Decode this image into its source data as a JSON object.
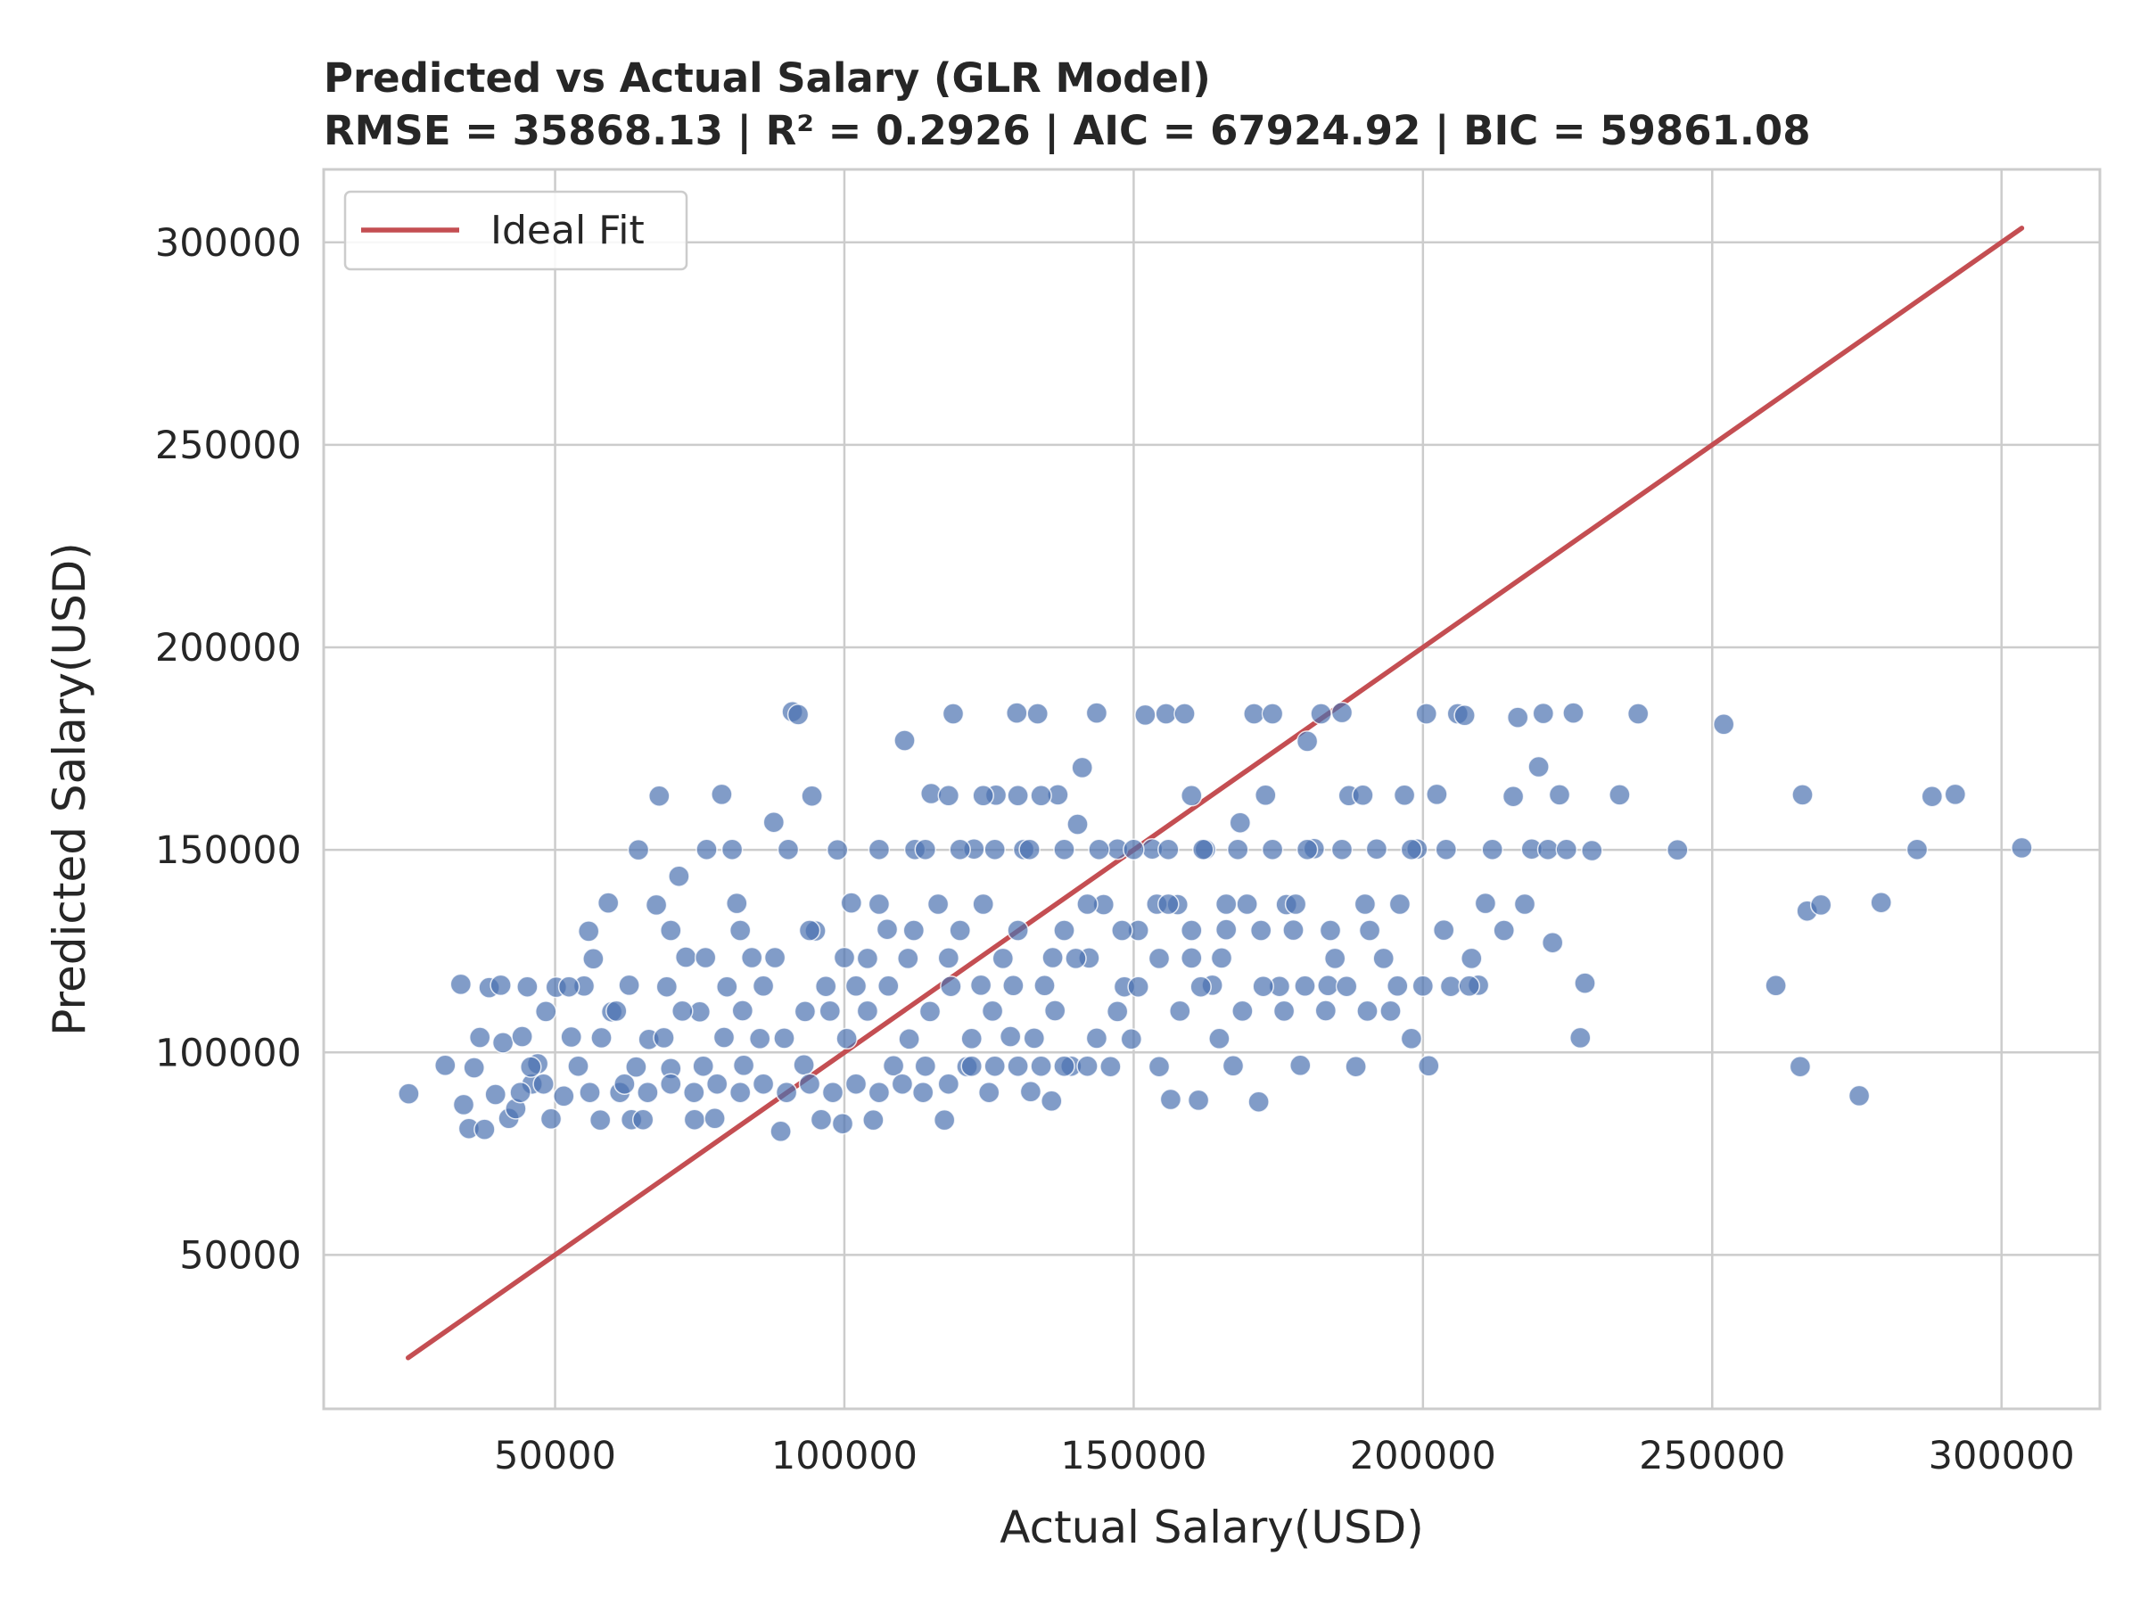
{
  "chart_data": {
    "type": "scatter",
    "title": "Predicted vs Actual Salary (GLR Model)",
    "subtitle": "RMSE = 35868.13 | R² = 0.2926 | AIC = 67924.92 | BIC = 59861.08",
    "xlabel": "Actual Salary(USD)",
    "ylabel": "Predicted Salary(USD)",
    "xlim": [
      10000,
      317000
    ],
    "ylim": [
      12000,
      318000
    ],
    "xticks": [
      50000,
      100000,
      150000,
      200000,
      250000,
      300000
    ],
    "yticks": [
      50000,
      100000,
      150000,
      200000,
      250000,
      300000
    ],
    "grid": true,
    "legend": {
      "position": "top-left",
      "entries": [
        {
          "label": "Ideal Fit",
          "color": "#c44e52"
        }
      ]
    },
    "colors": {
      "points": "#4c72b0",
      "ideal_line": "#c44e52"
    },
    "ideal_fit": {
      "name": "Ideal Fit",
      "x": [
        24600,
        303500
      ],
      "y": [
        24600,
        303500
      ]
    },
    "series": [
      {
        "points": [
          [
            24700,
            89800
          ],
          [
            31000,
            96800
          ],
          [
            33700,
            116800
          ],
          [
            34200,
            87100
          ],
          [
            35100,
            81200
          ],
          [
            36000,
            96200
          ],
          [
            37000,
            103700
          ],
          [
            37800,
            81000
          ],
          [
            38600,
            116000
          ],
          [
            39700,
            89600
          ],
          [
            41000,
            102400
          ],
          [
            42000,
            83700
          ],
          [
            43200,
            86100
          ],
          [
            44300,
            103900
          ],
          [
            45200,
            116200
          ],
          [
            46000,
            92200
          ],
          [
            47000,
            97200
          ],
          [
            48400,
            110100
          ],
          [
            49300,
            83600
          ],
          [
            50200,
            116100
          ],
          [
            51500,
            89200
          ],
          [
            52800,
            103800
          ],
          [
            54000,
            96600
          ],
          [
            55000,
            116400
          ],
          [
            55800,
            129900
          ],
          [
            56600,
            123100
          ],
          [
            57800,
            83300
          ],
          [
            59200,
            136900
          ],
          [
            59800,
            110000
          ],
          [
            61200,
            90100
          ],
          [
            62800,
            116600
          ],
          [
            63200,
            83400
          ],
          [
            64400,
            150000
          ],
          [
            65200,
            83400
          ],
          [
            66200,
            103200
          ],
          [
            67500,
            136400
          ],
          [
            68000,
            163300
          ],
          [
            69300,
            116200
          ],
          [
            70000,
            96000
          ],
          [
            71400,
            143500
          ],
          [
            72600,
            123500
          ],
          [
            74100,
            83400
          ],
          [
            75000,
            110000
          ],
          [
            76200,
            150100
          ],
          [
            77600,
            83700
          ],
          [
            78800,
            163700
          ],
          [
            79700,
            116200
          ],
          [
            80600,
            150100
          ],
          [
            81400,
            136800
          ],
          [
            82600,
            96800
          ],
          [
            84000,
            123400
          ],
          [
            85400,
            103400
          ],
          [
            87800,
            156800
          ],
          [
            89000,
            80500
          ],
          [
            90300,
            150100
          ],
          [
            91000,
            184100
          ],
          [
            92000,
            183400
          ],
          [
            93000,
            96900
          ],
          [
            94400,
            163300
          ],
          [
            95000,
            130000
          ],
          [
            96000,
            83400
          ],
          [
            97500,
            110200
          ],
          [
            98800,
            150000
          ],
          [
            99700,
            82400
          ],
          [
            101200,
            136900
          ],
          [
            102000,
            116400
          ],
          [
            104000,
            123200
          ],
          [
            105000,
            83300
          ],
          [
            106000,
            150100
          ],
          [
            107400,
            130400
          ],
          [
            108500,
            96700
          ],
          [
            110400,
            177000
          ],
          [
            111000,
            123200
          ],
          [
            112200,
            150100
          ],
          [
            113600,
            90100
          ],
          [
            115000,
            163900
          ],
          [
            116200,
            136600
          ],
          [
            117300,
            83300
          ],
          [
            118800,
            183600
          ],
          [
            120000,
            130100
          ],
          [
            121200,
            96500
          ],
          [
            122400,
            150200
          ],
          [
            123600,
            116600
          ],
          [
            125000,
            90100
          ],
          [
            126200,
            163500
          ],
          [
            127400,
            123200
          ],
          [
            128700,
            103900
          ],
          [
            129800,
            183800
          ],
          [
            131000,
            150100
          ],
          [
            132200,
            90300
          ],
          [
            133400,
            183600
          ],
          [
            134600,
            116500
          ],
          [
            135800,
            88000
          ],
          [
            136900,
            163600
          ],
          [
            138000,
            130100
          ],
          [
            139200,
            96600
          ],
          [
            140300,
            156300
          ],
          [
            141100,
            170300
          ],
          [
            142300,
            123300
          ],
          [
            143600,
            183800
          ],
          [
            144800,
            136500
          ],
          [
            146000,
            96500
          ],
          [
            147200,
            150200
          ],
          [
            148400,
            116200
          ],
          [
            149600,
            103300
          ],
          [
            150800,
            130100
          ],
          [
            152000,
            183300
          ],
          [
            153200,
            150200
          ],
          [
            154400,
            96500
          ],
          [
            155600,
            183600
          ],
          [
            156400,
            88400
          ],
          [
            157600,
            136500
          ],
          [
            158800,
            183600
          ],
          [
            160000,
            163400
          ],
          [
            161200,
            88200
          ],
          [
            162400,
            150100
          ],
          [
            163600,
            116600
          ],
          [
            164800,
            103400
          ],
          [
            166000,
            130300
          ],
          [
            167200,
            96700
          ],
          [
            168400,
            156700
          ],
          [
            169600,
            136600
          ],
          [
            170800,
            183600
          ],
          [
            171600,
            87800
          ],
          [
            172800,
            163500
          ],
          [
            174000,
            183600
          ],
          [
            175200,
            116300
          ],
          [
            176400,
            136500
          ],
          [
            177600,
            130200
          ],
          [
            178800,
            96800
          ],
          [
            180000,
            176800
          ],
          [
            181200,
            150300
          ],
          [
            182400,
            183600
          ],
          [
            183600,
            116500
          ],
          [
            184800,
            123200
          ],
          [
            186000,
            183900
          ],
          [
            187200,
            163400
          ],
          [
            188400,
            96500
          ],
          [
            189600,
            163500
          ],
          [
            190800,
            130100
          ],
          [
            192000,
            150200
          ],
          [
            193200,
            123200
          ],
          [
            194400,
            110200
          ],
          [
            195600,
            116400
          ],
          [
            196800,
            163500
          ],
          [
            198000,
            103400
          ],
          [
            199000,
            150200
          ],
          [
            200600,
            183600
          ],
          [
            201000,
            96700
          ],
          [
            202400,
            163700
          ],
          [
            203600,
            130200
          ],
          [
            204800,
            116300
          ],
          [
            206000,
            183600
          ],
          [
            207200,
            183200
          ],
          [
            208400,
            123200
          ],
          [
            209600,
            116600
          ],
          [
            210800,
            136800
          ],
          [
            212000,
            150100
          ],
          [
            214000,
            130100
          ],
          [
            215600,
            163200
          ],
          [
            216400,
            182700
          ],
          [
            217600,
            136600
          ],
          [
            218800,
            150200
          ],
          [
            220000,
            170500
          ],
          [
            220800,
            183700
          ],
          [
            221600,
            150100
          ],
          [
            222400,
            127100
          ],
          [
            223600,
            163600
          ],
          [
            224800,
            150100
          ],
          [
            226000,
            183800
          ],
          [
            227200,
            103600
          ],
          [
            228000,
            117100
          ],
          [
            229200,
            149800
          ],
          [
            234000,
            163600
          ],
          [
            237200,
            183600
          ],
          [
            244000,
            150000
          ],
          [
            252000,
            181000
          ],
          [
            261000,
            116500
          ],
          [
            265600,
            163600
          ],
          [
            265200,
            96500
          ],
          [
            266400,
            134900
          ],
          [
            268800,
            136400
          ],
          [
            275400,
            89300
          ],
          [
            279200,
            137000
          ],
          [
            285400,
            150100
          ],
          [
            288000,
            163200
          ],
          [
            292000,
            163700
          ],
          [
            303500,
            150500
          ],
          [
            40600,
            116600
          ],
          [
            45800,
            96400
          ],
          [
            52400,
            116200
          ],
          [
            58000,
            103600
          ],
          [
            60600,
            110200
          ],
          [
            64000,
            96400
          ],
          [
            68800,
            103600
          ],
          [
            72000,
            110200
          ],
          [
            75600,
            96600
          ],
          [
            79200,
            103700
          ],
          [
            82400,
            110300
          ],
          [
            86000,
            116400
          ],
          [
            89600,
            103500
          ],
          [
            93200,
            110100
          ],
          [
            96800,
            116300
          ],
          [
            100400,
            103400
          ],
          [
            104000,
            110200
          ],
          [
            107600,
            116400
          ],
          [
            111200,
            103300
          ],
          [
            114800,
            110100
          ],
          [
            118400,
            116300
          ],
          [
            122000,
            103400
          ],
          [
            125600,
            110200
          ],
          [
            129200,
            116500
          ],
          [
            132800,
            103500
          ],
          [
            136400,
            110300
          ],
          [
            140000,
            123200
          ],
          [
            143600,
            103500
          ],
          [
            147200,
            110100
          ],
          [
            150800,
            116200
          ],
          [
            154400,
            123200
          ],
          [
            158000,
            110200
          ],
          [
            161600,
            116200
          ],
          [
            165200,
            123300
          ],
          [
            168800,
            110200
          ],
          [
            172400,
            116300
          ],
          [
            176000,
            110200
          ],
          [
            179600,
            116400
          ],
          [
            183200,
            110300
          ],
          [
            186800,
            116300
          ],
          [
            190400,
            110200
          ],
          [
            44000,
            90100
          ],
          [
            48000,
            92200
          ],
          [
            56000,
            90100
          ],
          [
            62000,
            92200
          ],
          [
            66000,
            90100
          ],
          [
            70000,
            92200
          ],
          [
            74000,
            90100
          ],
          [
            78000,
            92200
          ],
          [
            82000,
            90100
          ],
          [
            86000,
            92200
          ],
          [
            90000,
            90100
          ],
          [
            94000,
            92200
          ],
          [
            98000,
            90100
          ],
          [
            102000,
            92200
          ],
          [
            106000,
            90100
          ],
          [
            110000,
            92200
          ],
          [
            114000,
            96600
          ],
          [
            118000,
            92200
          ],
          [
            122000,
            96600
          ],
          [
            126000,
            96600
          ],
          [
            130000,
            96600
          ],
          [
            134000,
            96600
          ],
          [
            138000,
            96600
          ],
          [
            142000,
            96600
          ],
          [
            70000,
            130100
          ],
          [
            76000,
            123400
          ],
          [
            82000,
            130100
          ],
          [
            88000,
            123400
          ],
          [
            94000,
            130100
          ],
          [
            100000,
            123400
          ],
          [
            106000,
            136600
          ],
          [
            112000,
            130100
          ],
          [
            118000,
            123300
          ],
          [
            124000,
            136600
          ],
          [
            130000,
            130100
          ],
          [
            136000,
            123400
          ],
          [
            142000,
            136600
          ],
          [
            148000,
            130100
          ],
          [
            154000,
            136600
          ],
          [
            160000,
            130100
          ],
          [
            166000,
            136600
          ],
          [
            172000,
            130100
          ],
          [
            178000,
            136600
          ],
          [
            184000,
            130100
          ],
          [
            190000,
            136600
          ],
          [
            196000,
            136600
          ],
          [
            114000,
            150100
          ],
          [
            120000,
            150100
          ],
          [
            126000,
            150100
          ],
          [
            132000,
            150100
          ],
          [
            138000,
            150100
          ],
          [
            144000,
            150100
          ],
          [
            150000,
            150100
          ],
          [
            156000,
            150100
          ],
          [
            162000,
            150100
          ],
          [
            168000,
            150100
          ],
          [
            174000,
            150100
          ],
          [
            180000,
            150100
          ],
          [
            186000,
            150100
          ],
          [
            198000,
            150100
          ],
          [
            204000,
            150100
          ],
          [
            118000,
            163400
          ],
          [
            124000,
            163400
          ],
          [
            130000,
            163400
          ],
          [
            134000,
            163400
          ],
          [
            156000,
            136600
          ],
          [
            160000,
            123300
          ],
          [
            200000,
            116400
          ],
          [
            208000,
            116400
          ]
        ]
      }
    ]
  },
  "legend": {
    "label": "Ideal Fit"
  }
}
